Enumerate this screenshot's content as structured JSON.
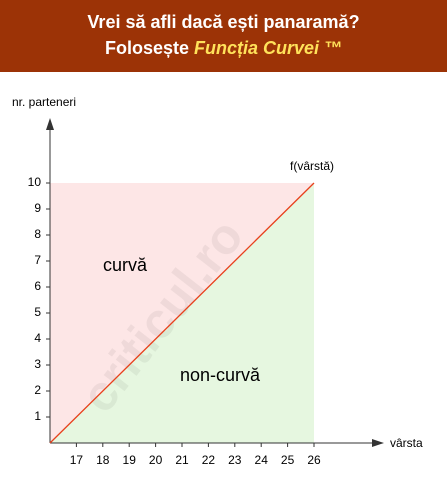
{
  "header": {
    "line1": "Vrei să afli dacă ești panaramă?",
    "line2_prefix": "Folosește",
    "line2_highlight": "Funcția Curvei ™"
  },
  "chart_data": {
    "type": "line",
    "x_label": "vârsta",
    "y_label": "nr. parteneri",
    "x": [
      16,
      26
    ],
    "series": [
      {
        "name": "f(vârstă)",
        "color": "#e8401c",
        "values": [
          0,
          10
        ]
      }
    ],
    "xlim": [
      16,
      26
    ],
    "ylim": [
      0,
      10
    ],
    "xticks": [
      17,
      18,
      19,
      20,
      21,
      22,
      23,
      24,
      25,
      26
    ],
    "yticks": [
      1,
      2,
      3,
      4,
      5,
      6,
      7,
      8,
      9,
      10
    ],
    "region_above": {
      "label": "curvă",
      "color": "#fde6e6"
    },
    "region_below": {
      "label": "non-curvă",
      "color": "#e6f7e0"
    },
    "watermark": "criticul.ro"
  }
}
